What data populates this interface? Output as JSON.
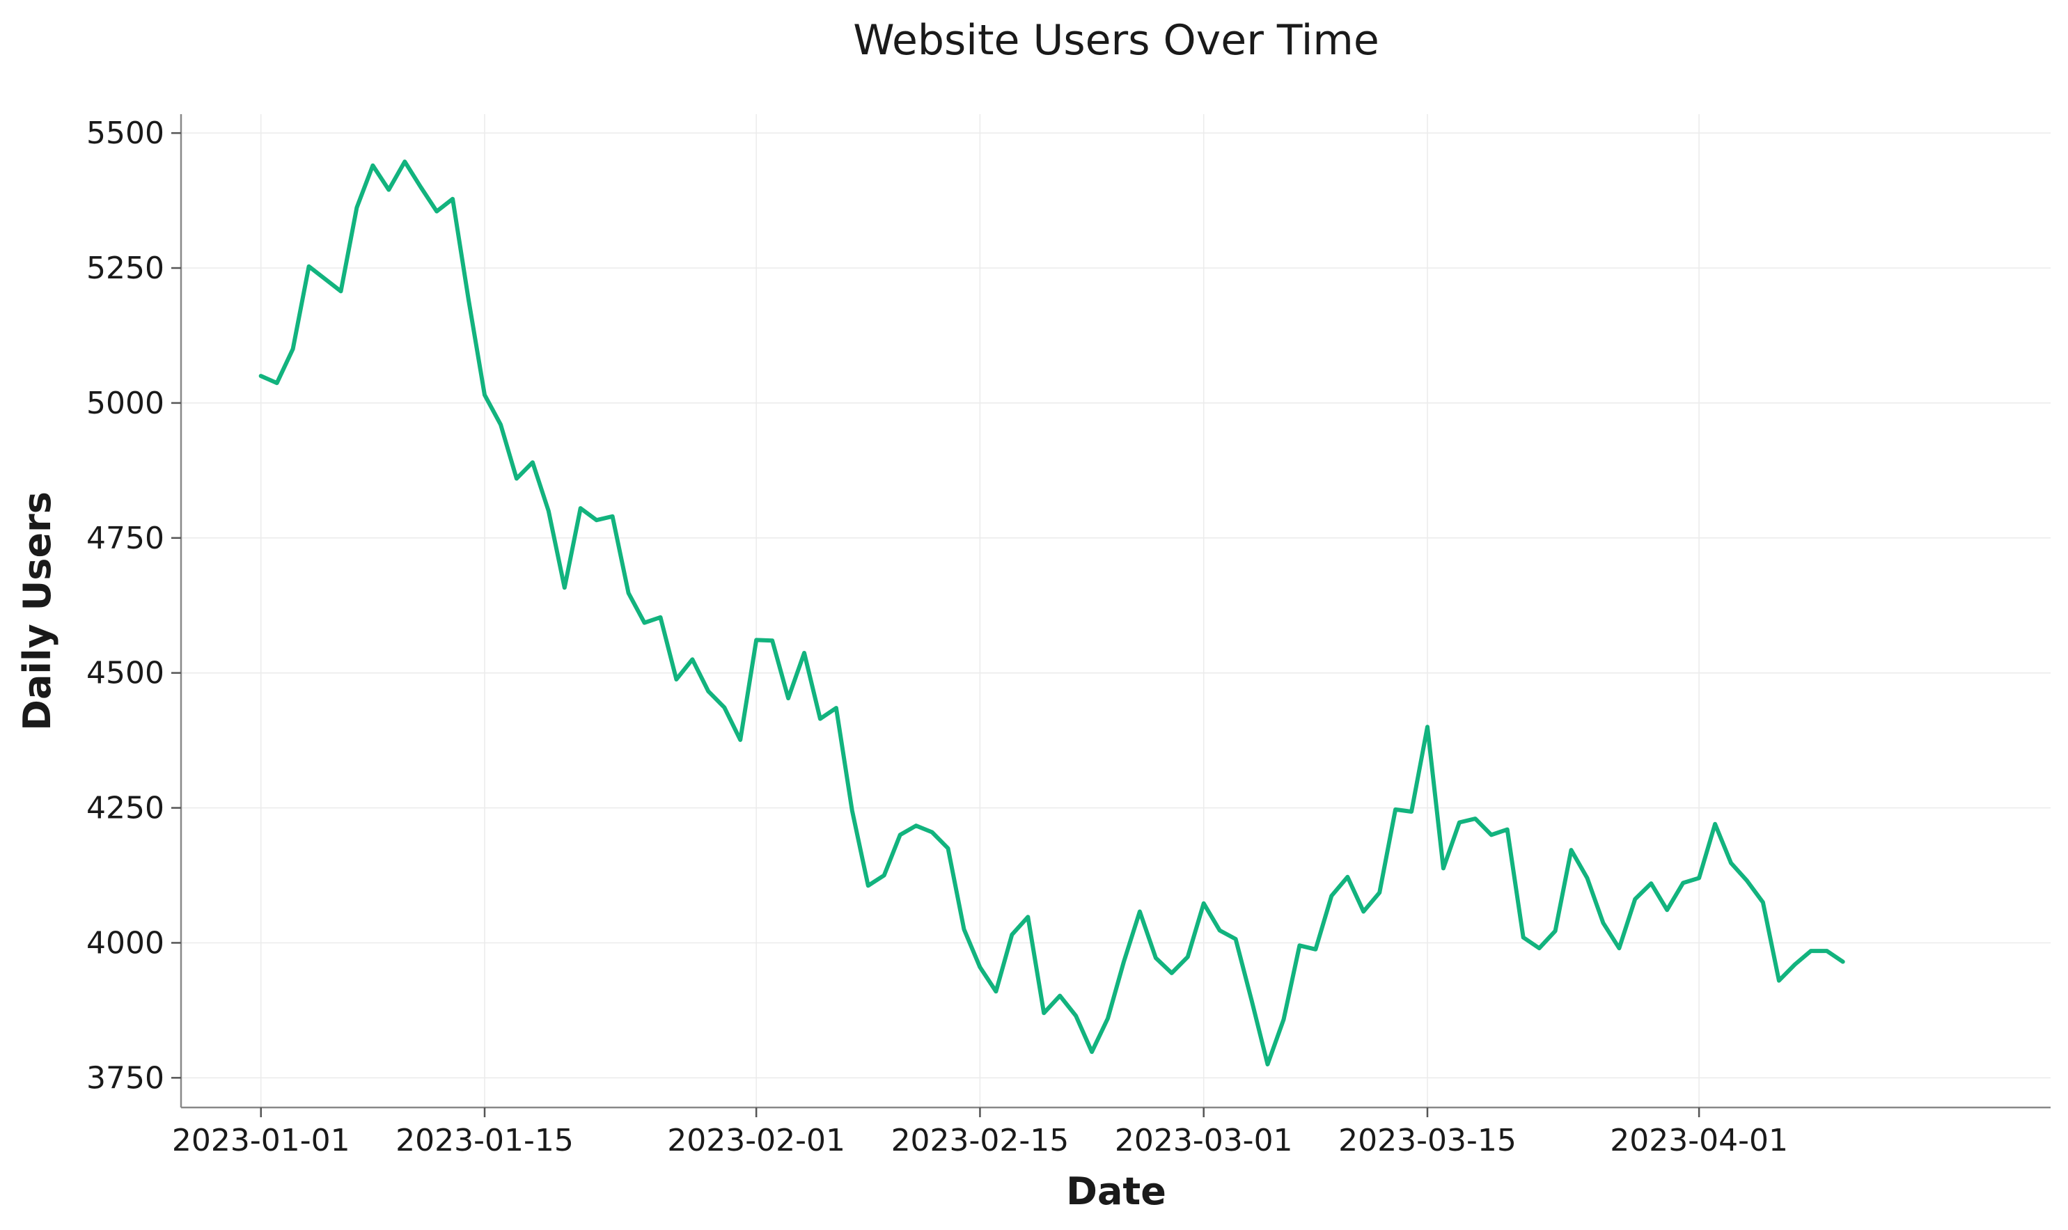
{
  "chart_data": {
    "type": "line",
    "title": "Website Users Over Time",
    "xlabel": "Date",
    "ylabel": "Daily Users",
    "x_start": "2023-01-01",
    "x_end": "2023-04-10",
    "xlim": [
      "2022-12-27",
      "2023-04-23"
    ],
    "ylim": [
      3695,
      5535
    ],
    "x_ticks": [
      "2023-01-01",
      "2023-01-15",
      "2023-02-01",
      "2023-02-15",
      "2023-03-01",
      "2023-03-15",
      "2023-04-01"
    ],
    "y_ticks": [
      3750,
      4000,
      4250,
      4500,
      4750,
      5000,
      5250,
      5500
    ],
    "grid": true,
    "line_color": "#12b37e",
    "series": [
      {
        "name": "",
        "values": [
          5050,
          5037,
          5100,
          5253,
          5230,
          5207,
          5362,
          5440,
          5395,
          5447,
          5400,
          5355,
          5378,
          5190,
          5015,
          4960,
          4860,
          4890,
          4800,
          4658,
          4805,
          4783,
          4790,
          4648,
          4593,
          4603,
          4488,
          4525,
          4466,
          4436,
          4376,
          4561,
          4560,
          4453,
          4537,
          4415,
          4435,
          4245,
          4106,
          4125,
          4200,
          4217,
          4205,
          4175,
          4025,
          3955,
          3910,
          4015,
          4048,
          3870,
          3902,
          3865,
          3798,
          3860,
          3965,
          4058,
          3972,
          3944,
          3974,
          4073,
          4023,
          4007,
          3893,
          3775,
          3858,
          3995,
          3988,
          4087,
          4122,
          4058,
          4093,
          4247,
          4243,
          4400,
          4138,
          4223,
          4230,
          4200,
          4210,
          4010,
          3990,
          4022,
          4172,
          4120,
          4037,
          3990,
          4081,
          4110,
          4061,
          4111,
          4120,
          4220,
          4148,
          4115,
          4075,
          3930,
          3960,
          3985,
          3985,
          3965
        ]
      }
    ]
  }
}
